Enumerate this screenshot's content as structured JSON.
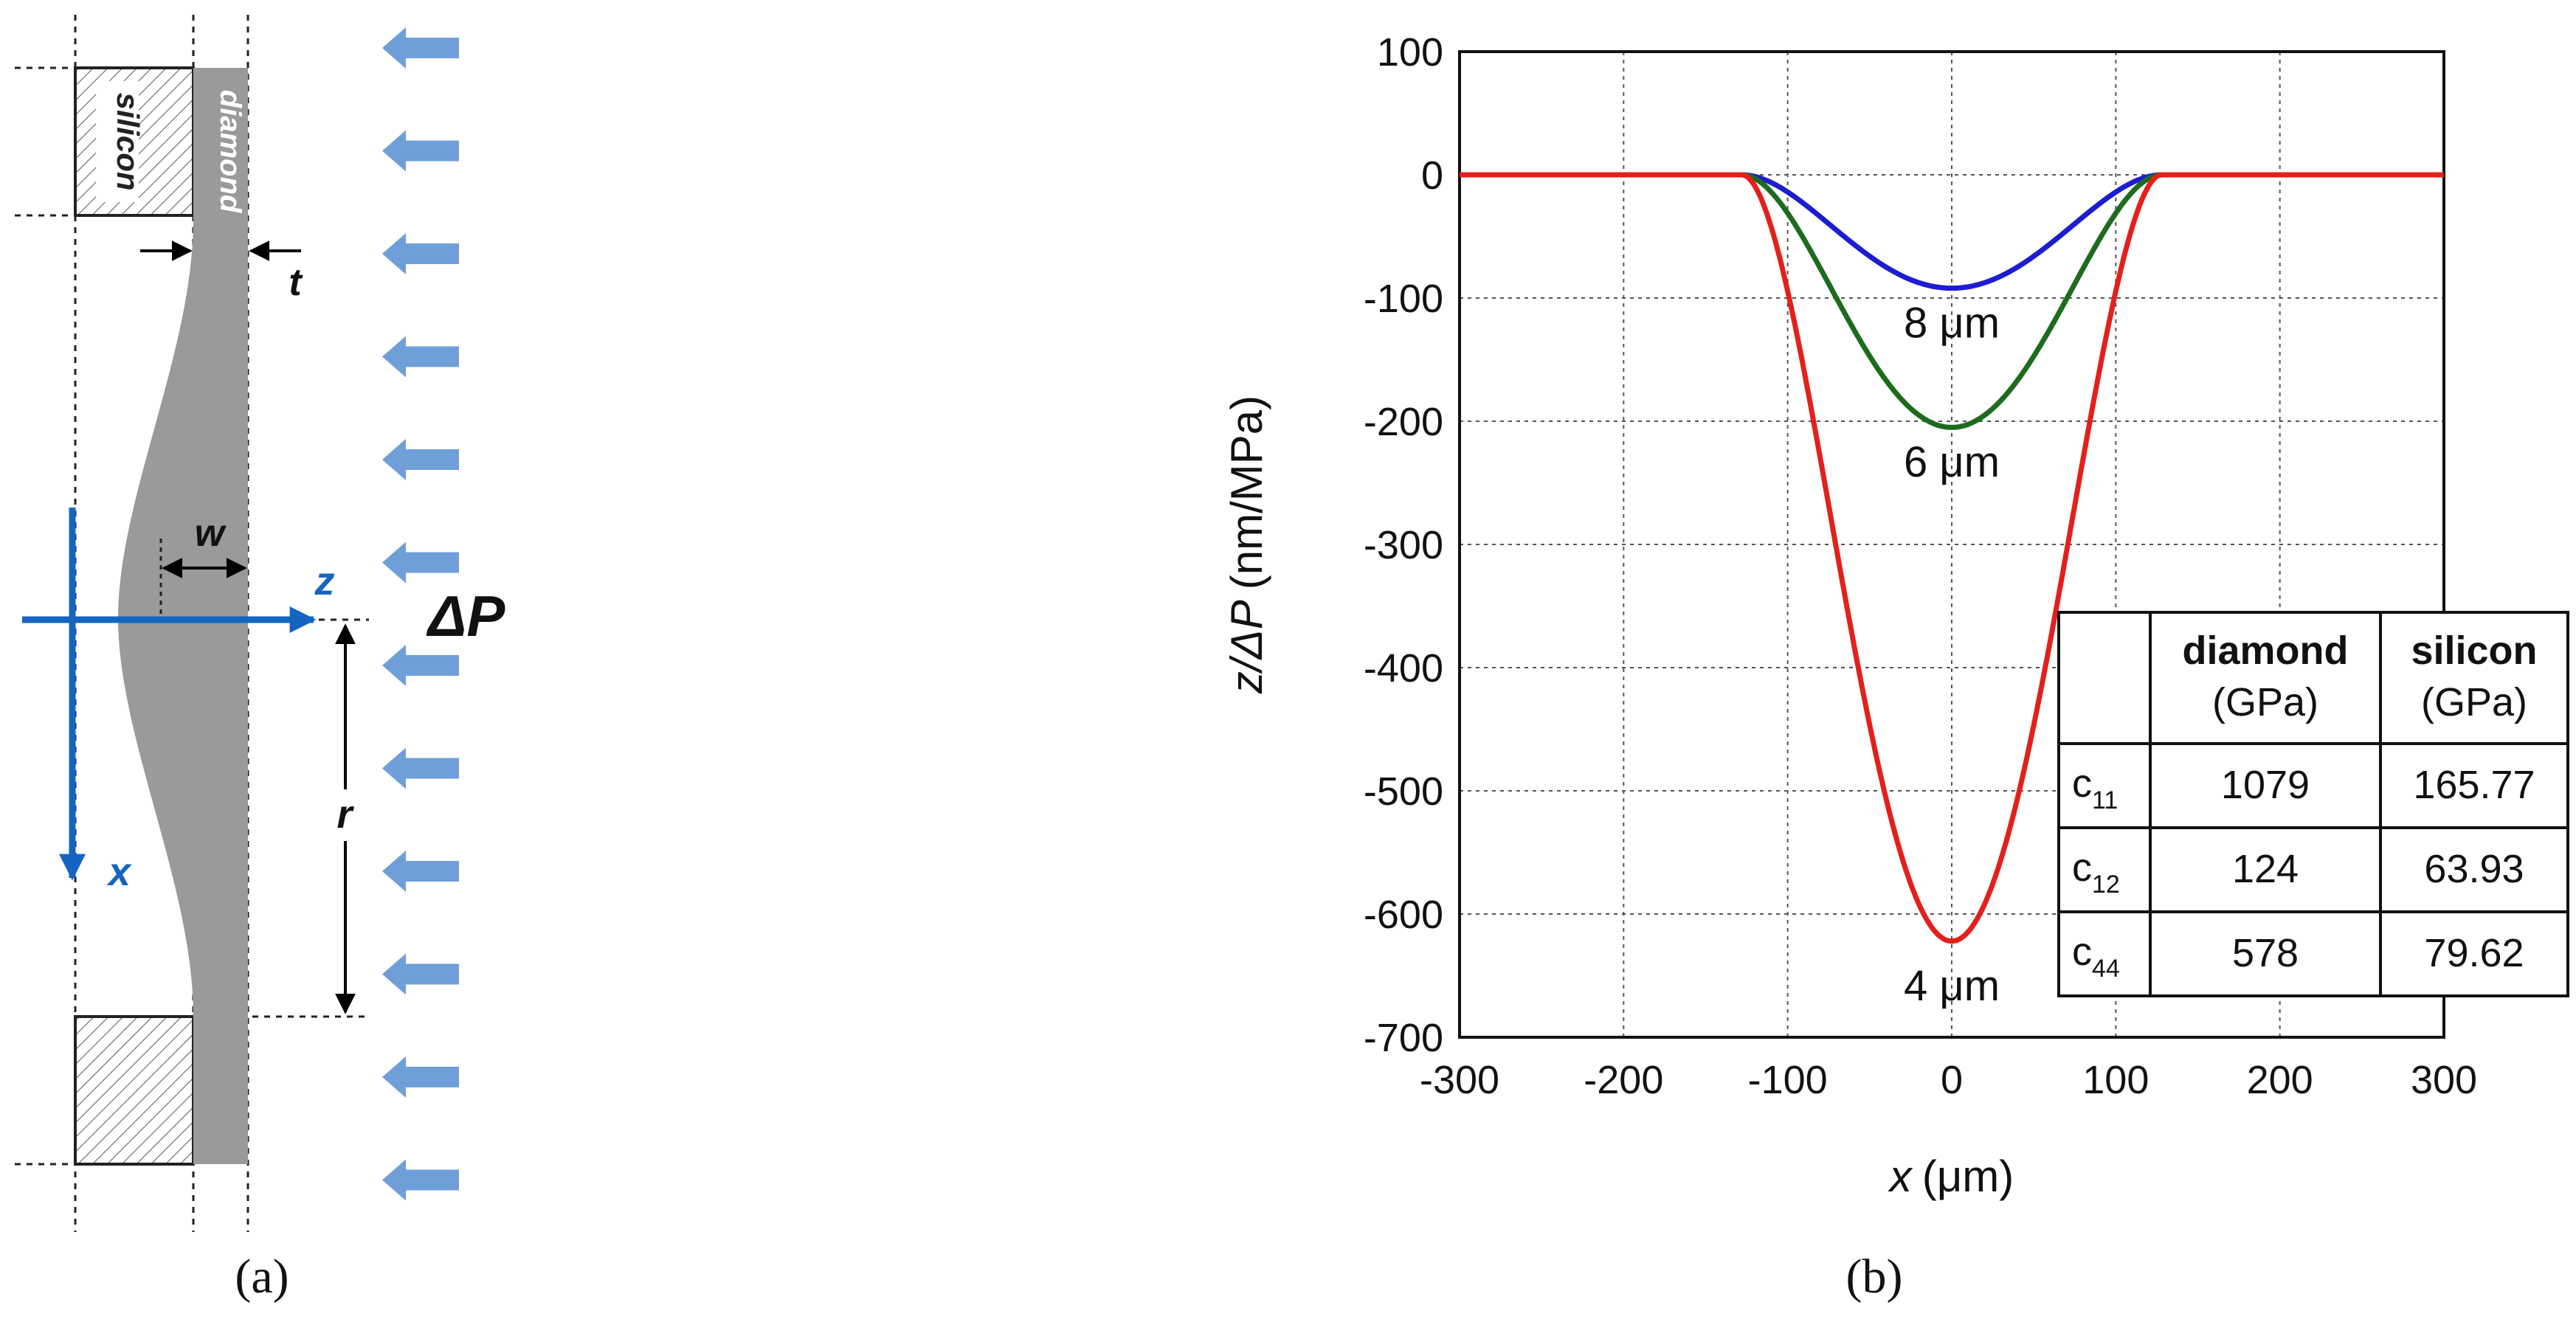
{
  "panel_a": {
    "caption": "(a)",
    "label_silicon": "silicon",
    "label_diamond": "diamond",
    "label_t": "t",
    "label_w": "w",
    "label_z": "z",
    "label_x": "x",
    "label_r": "r",
    "label_dP": "ΔP",
    "colors": {
      "membrane": "#9a9a9a",
      "axes": "#1565c0",
      "arrows": "#6f9fd8"
    }
  },
  "panel_b": {
    "caption": "(b)",
    "table": {
      "headers": [
        {
          "main": "diamond",
          "unit": "(GPa)"
        },
        {
          "main": "silicon",
          "unit": "(GPa)"
        }
      ],
      "rows": [
        {
          "sym": "c",
          "sub": "11",
          "diamond": "1079",
          "silicon": "165.77"
        },
        {
          "sym": "c",
          "sub": "12",
          "diamond": "124",
          "silicon": "63.93"
        },
        {
          "sym": "c",
          "sub": "44",
          "diamond": "578",
          "silicon": "79.62"
        }
      ]
    }
  },
  "chart_data": {
    "type": "line",
    "title": "",
    "xlabel_var": "x",
    "xlabel_unit": "(μm)",
    "ylabel_var": "z/ΔP",
    "ylabel_unit": "(nm/MPa)",
    "xlim": [
      -300,
      300
    ],
    "ylim": [
      -700,
      100
    ],
    "xticks": [
      -300,
      -200,
      -100,
      0,
      100,
      200,
      300
    ],
    "yticks": [
      100,
      0,
      -100,
      -200,
      -300,
      -400,
      -500,
      -600,
      -700
    ],
    "grid": true,
    "edge_radius": 128,
    "series": [
      {
        "name": "8 μm",
        "color": "#1c1cd0",
        "min_value": -92
      },
      {
        "name": "6 μm",
        "color": "#1e6b1e",
        "min_value": -205
      },
      {
        "name": "4 μm",
        "color": "#e3201b",
        "min_value": -622
      }
    ],
    "annotations": [
      {
        "text": "8 μm",
        "x": 0,
        "y": -120
      },
      {
        "text": "6 μm",
        "x": 0,
        "y": -233
      },
      {
        "text": "4 μm",
        "x": 0,
        "y": -658
      }
    ]
  }
}
